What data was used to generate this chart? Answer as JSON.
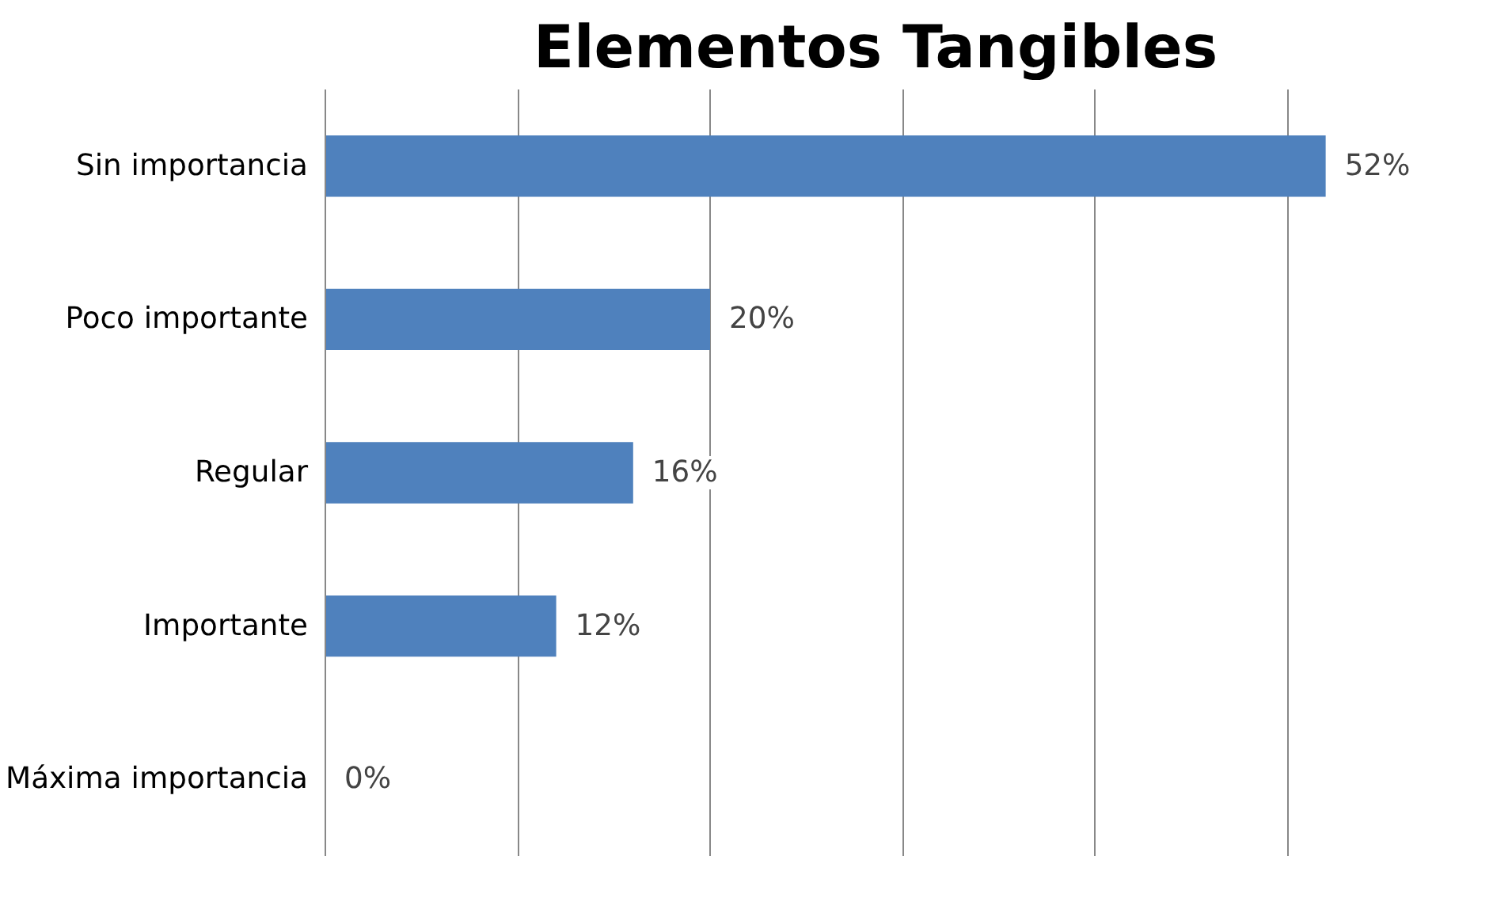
{
  "chart_data": {
    "type": "bar",
    "orientation": "horizontal",
    "title": "Elementos Tangibles",
    "categories": [
      "Sin importancia",
      "Poco importante",
      "Regular",
      "Importante",
      "Máxima importancia"
    ],
    "values": [
      52,
      20,
      16,
      12,
      0
    ],
    "color": "#4f81bd",
    "value_labels": [
      "52%",
      "20%",
      "16%",
      "12%",
      "0%"
    ],
    "grid": "x",
    "tick_labels": "y"
  }
}
